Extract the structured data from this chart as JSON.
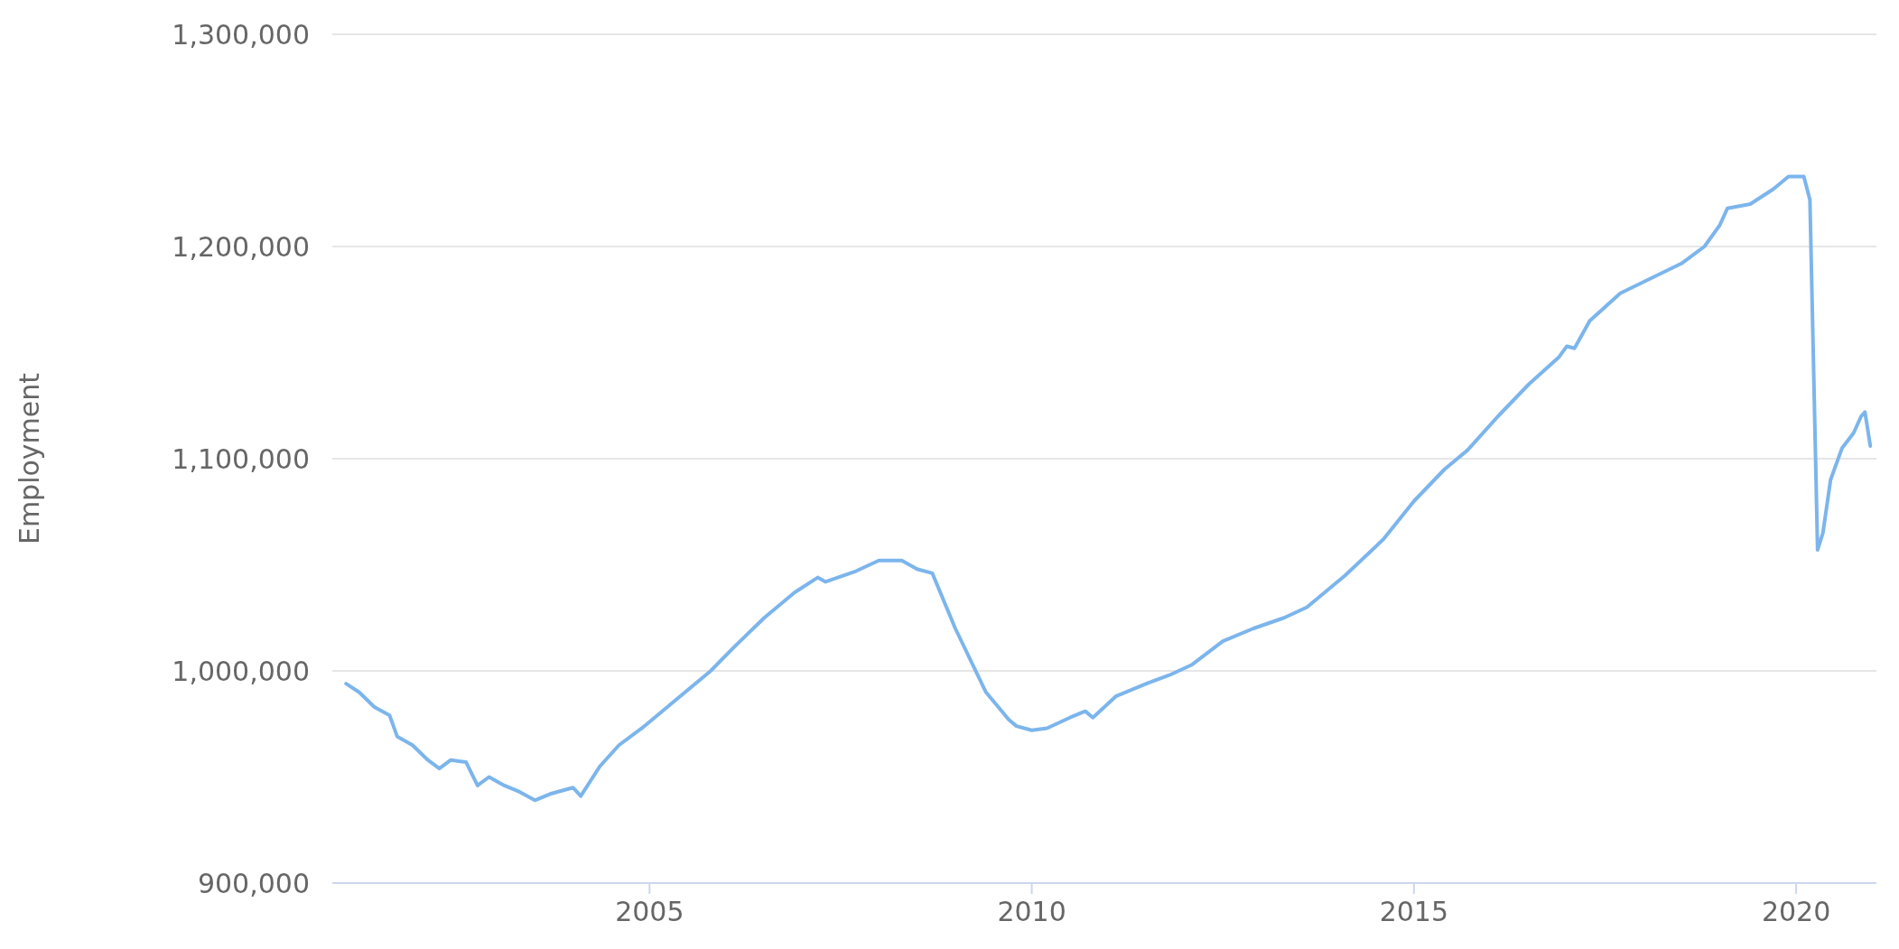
{
  "chart_data": {
    "type": "line",
    "ylabel": "Employment",
    "xlim": [
      2000.85,
      2021.05
    ],
    "xticks": [
      2005,
      2010,
      2015,
      2020
    ],
    "ylim": [
      900000,
      1300000
    ],
    "yticks": [
      {
        "value": 900000,
        "label": "900,000"
      },
      {
        "value": 1000000,
        "label": "1,000,000"
      },
      {
        "value": 1100000,
        "label": "1,100,000"
      },
      {
        "value": 1200000,
        "label": "1,200,000"
      },
      {
        "value": 1300000,
        "label": "1,300,000"
      }
    ],
    "grid": "y",
    "marker": "none",
    "line_style": "solid",
    "series": [
      {
        "color": "#7cb5ec",
        "x": [
          2001.03,
          2001.2,
          2001.4,
          2001.6,
          2001.7,
          2001.9,
          2002.1,
          2002.25,
          2002.4,
          2002.6,
          2002.75,
          2002.9,
          2003.1,
          2003.3,
          2003.5,
          2003.7,
          2004.0,
          2004.1,
          2004.35,
          2004.6,
          2004.9,
          2005.3,
          2005.8,
          2006.1,
          2006.5,
          2006.9,
          2007.2,
          2007.3,
          2007.7,
          2008.0,
          2008.3,
          2008.5,
          2008.7,
          2009.0,
          2009.4,
          2009.7,
          2009.8,
          2010.0,
          2010.2,
          2010.5,
          2010.7,
          2010.8,
          2011.1,
          2011.5,
          2011.8,
          2012.1,
          2012.5,
          2012.9,
          2013.3,
          2013.6,
          2014.1,
          2014.6,
          2015.0,
          2015.4,
          2015.7,
          2016.1,
          2016.5,
          2016.9,
          2017.0,
          2017.1,
          2017.3,
          2017.7,
          2018.1,
          2018.5,
          2018.8,
          2019.0,
          2019.1,
          2019.4,
          2019.7,
          2019.9,
          2020.1,
          2020.18,
          2020.28,
          2020.35,
          2020.45,
          2020.6,
          2020.75,
          2020.85,
          2020.9,
          2020.97
        ],
        "values": [
          994000,
          990000,
          983000,
          979000,
          969000,
          965000,
          958000,
          954000,
          958000,
          957000,
          946000,
          950000,
          946000,
          943000,
          939000,
          942000,
          945000,
          941000,
          955000,
          965000,
          973000,
          985000,
          1000000,
          1011000,
          1025000,
          1037000,
          1044000,
          1042000,
          1047000,
          1052000,
          1052000,
          1048000,
          1046000,
          1020000,
          990000,
          977000,
          974000,
          972000,
          973000,
          978000,
          981000,
          978000,
          988000,
          994000,
          998000,
          1003000,
          1014000,
          1020000,
          1025000,
          1030000,
          1045000,
          1062000,
          1080000,
          1095000,
          1104000,
          1120000,
          1135000,
          1148000,
          1153000,
          1152000,
          1165000,
          1178000,
          1185000,
          1192000,
          1200000,
          1210000,
          1218000,
          1220000,
          1227000,
          1233000,
          1233000,
          1222000,
          1057000,
          1065000,
          1090000,
          1105000,
          1112000,
          1120000,
          1122000,
          1106000
        ]
      }
    ]
  }
}
